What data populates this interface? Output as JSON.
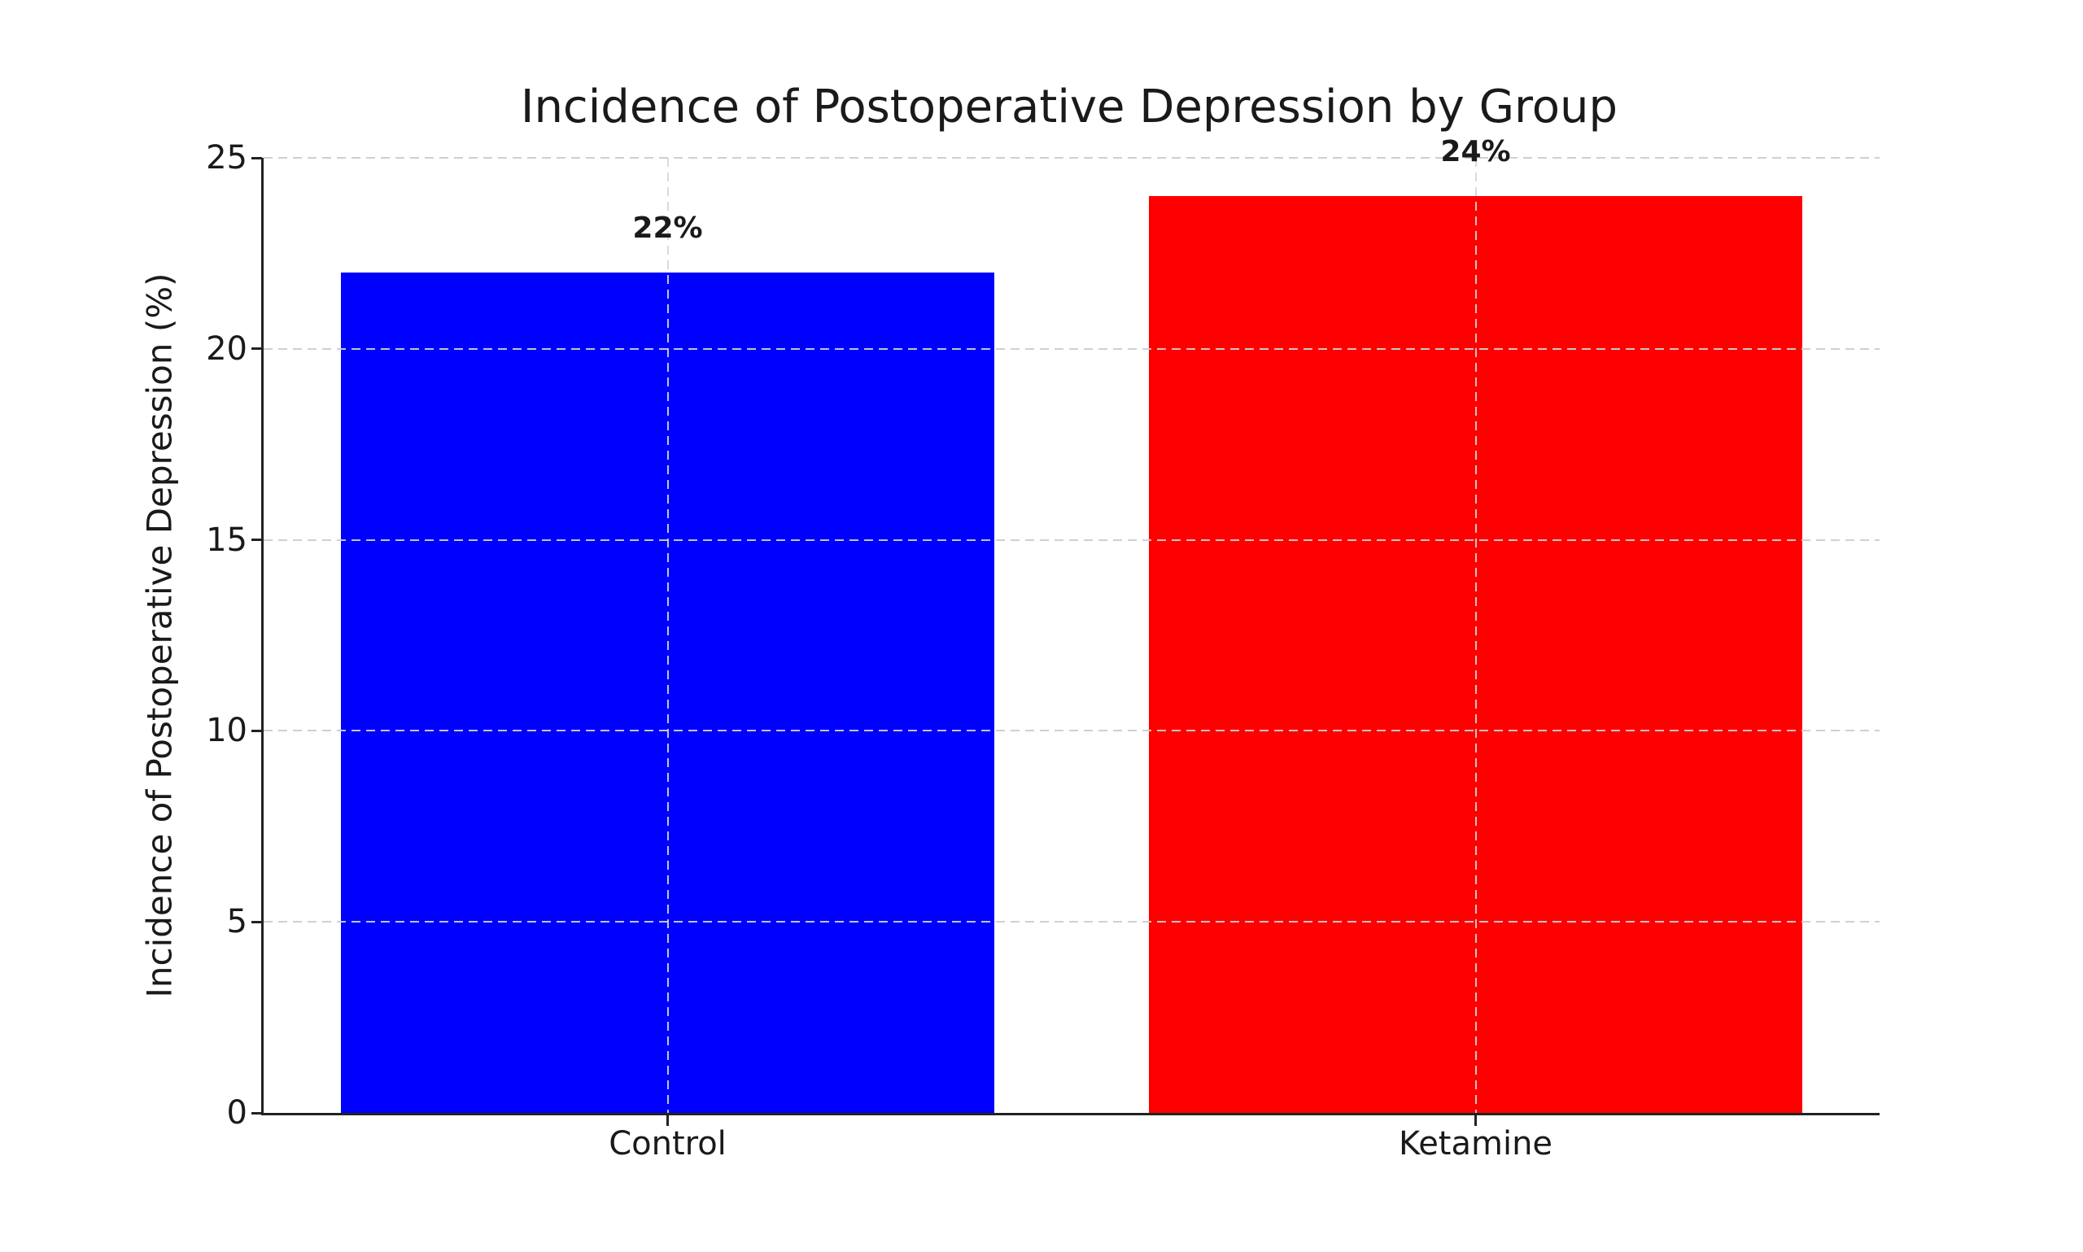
{
  "chart_data": {
    "type": "bar",
    "title": "Incidence of Postoperative Depression by Group",
    "xlabel": "",
    "ylabel": "Incidence of Postoperative Depression (%)",
    "categories": [
      "Control",
      "Ketamine"
    ],
    "values": [
      22,
      24
    ],
    "value_labels": [
      "22%",
      "24%"
    ],
    "bar_colors": [
      "#0000ff",
      "#ff0000"
    ],
    "ylim": [
      0,
      25
    ],
    "yticks": [
      0,
      5,
      10,
      15,
      20,
      25
    ],
    "grid": {
      "style": "dashed",
      "color": "#cdcdcd",
      "axes": "both",
      "drawn_over_bars": true
    },
    "legend": "none",
    "background_color": "#ffffff",
    "spine_color": "#222222"
  }
}
